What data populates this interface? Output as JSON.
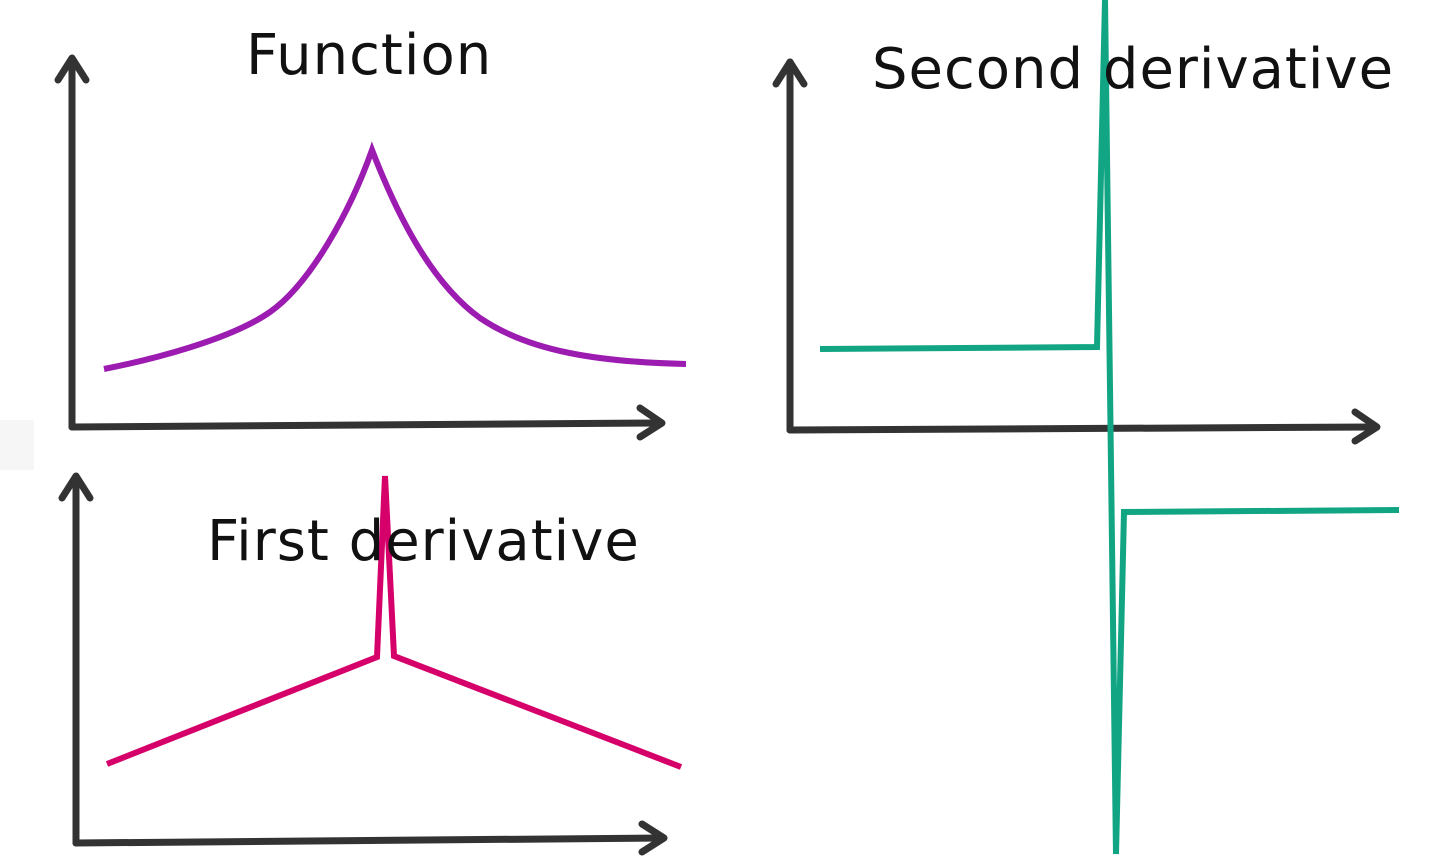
{
  "panels": {
    "function": {
      "title": "Function",
      "color": "#9c1bb0"
    },
    "first_derivative": {
      "title": "First derivative",
      "color": "#d6006b"
    },
    "second_derivative": {
      "title": "Second derivative",
      "color": "#11a584"
    }
  }
}
